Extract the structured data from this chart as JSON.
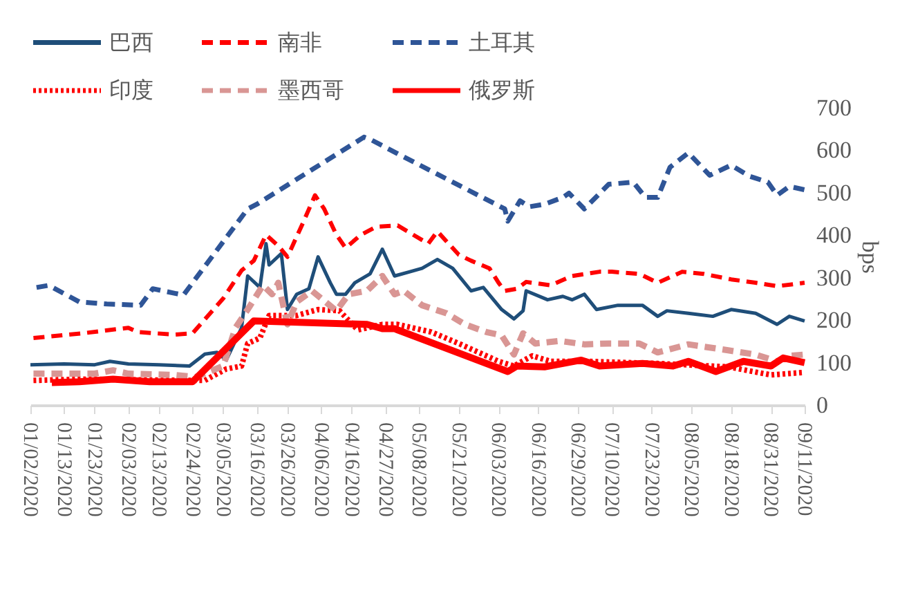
{
  "chart_data": {
    "type": "line",
    "ylabel": "bps",
    "legend": "top",
    "xlim": [
      "2020-01-02",
      "2020-09-11"
    ],
    "ylim": [
      0,
      700
    ],
    "yticks": [
      0,
      100,
      200,
      300,
      400,
      500,
      600,
      700
    ],
    "xticks": [
      {
        "value": "2020-01-02",
        "label": "01/02/2020"
      },
      {
        "value": "2020-01-13",
        "label": "01/13/2020"
      },
      {
        "value": "2020-01-23",
        "label": "01/23/2020"
      },
      {
        "value": "2020-02-03",
        "label": "02/03/2020"
      },
      {
        "value": "2020-02-13",
        "label": "02/13/2020"
      },
      {
        "value": "2020-02-24",
        "label": "02/24/2020"
      },
      {
        "value": "2020-03-05",
        "label": "03/05/2020"
      },
      {
        "value": "2020-03-16",
        "label": "03/16/2020"
      },
      {
        "value": "2020-03-26",
        "label": "03/26/2020"
      },
      {
        "value": "2020-04-06",
        "label": "04/06/2020"
      },
      {
        "value": "2020-04-16",
        "label": "04/16/2020"
      },
      {
        "value": "2020-04-27",
        "label": "04/27/2020"
      },
      {
        "value": "2020-05-08",
        "label": "05/08/2020"
      },
      {
        "value": "2020-05-21",
        "label": "05/21/2020"
      },
      {
        "value": "2020-06-03",
        "label": "06/03/2020"
      },
      {
        "value": "2020-06-16",
        "label": "06/16/2020"
      },
      {
        "value": "2020-06-29",
        "label": "06/29/2020"
      },
      {
        "value": "2020-07-10",
        "label": "07/10/2020"
      },
      {
        "value": "2020-07-23",
        "label": "07/23/2020"
      },
      {
        "value": "2020-08-05",
        "label": "08/05/2020"
      },
      {
        "value": "2020-08-18",
        "label": "08/18/2020"
      },
      {
        "value": "2020-08-31",
        "label": "08/31/2020"
      },
      {
        "value": "2020-09-11",
        "label": "09/11/2020"
      }
    ],
    "series": [
      {
        "name": "巴西",
        "color": "#1f4e79",
        "line_style": "solid",
        "x": [
          "2020-01-02",
          "2020-01-13",
          "2020-01-23",
          "2020-01-28",
          "2020-02-03",
          "2020-02-13",
          "2020-02-23",
          "2020-02-28",
          "2020-03-03",
          "2020-03-06",
          "2020-03-11",
          "2020-03-13",
          "2020-03-17",
          "2020-03-19",
          "2020-03-20",
          "2020-03-24",
          "2020-03-26",
          "2020-03-29",
          "2020-04-02",
          "2020-04-05",
          "2020-04-09",
          "2020-04-11",
          "2020-04-14",
          "2020-04-17",
          "2020-04-22",
          "2020-04-26",
          "2020-04-30",
          "2020-05-05",
          "2020-05-09",
          "2020-05-14",
          "2020-05-19",
          "2020-05-25",
          "2020-05-29",
          "2020-06-04",
          "2020-06-08",
          "2020-06-11",
          "2020-06-12",
          "2020-06-19",
          "2020-06-24",
          "2020-06-27",
          "2020-07-01",
          "2020-07-05",
          "2020-07-12",
          "2020-07-20",
          "2020-07-25",
          "2020-07-28",
          "2020-08-04",
          "2020-08-12",
          "2020-08-18",
          "2020-08-26",
          "2020-09-02",
          "2020-09-06",
          "2020-09-11"
        ],
        "values": [
          95,
          97,
          95,
          103,
          97,
          95,
          92,
          120,
          124,
          106,
          182,
          304,
          277,
          380,
          330,
          357,
          225,
          261,
          274,
          349,
          288,
          261,
          261,
          288,
          309,
          367,
          304,
          314,
          322,
          343,
          322,
          269,
          277,
          225,
          203,
          222,
          269,
          248,
          256,
          248,
          261,
          225,
          235,
          235,
          209,
          222,
          216,
          209,
          225,
          216,
          190,
          209,
          198
        ]
      },
      {
        "name": "南非",
        "color": "#ff0000",
        "line_style": "dashed",
        "x": [
          "2020-01-03",
          "2020-01-19",
          "2020-02-03",
          "2020-02-06",
          "2020-02-18",
          "2020-02-24",
          "2020-03-05",
          "2020-03-11",
          "2020-03-15",
          "2020-03-19",
          "2020-03-23",
          "2020-03-26",
          "2020-03-31",
          "2020-04-04",
          "2020-04-07",
          "2020-04-11",
          "2020-04-14",
          "2020-04-19",
          "2020-04-24",
          "2020-05-01",
          "2020-05-11",
          "2020-05-14",
          "2020-05-21",
          "2020-05-25",
          "2020-05-31",
          "2020-06-03",
          "2020-06-05",
          "2020-06-09",
          "2020-06-12",
          "2020-06-20",
          "2020-06-27",
          "2020-07-06",
          "2020-07-10",
          "2020-07-19",
          "2020-07-25",
          "2020-08-02",
          "2020-08-09",
          "2020-08-18",
          "2020-08-26",
          "2020-09-02",
          "2020-09-11"
        ],
        "values": [
          158,
          169,
          182,
          172,
          166,
          169,
          251,
          317,
          340,
          401,
          375,
          349,
          428,
          494,
          462,
          401,
          370,
          401,
          420,
          423,
          380,
          409,
          354,
          340,
          322,
          288,
          269,
          274,
          290,
          282,
          304,
          314,
          314,
          309,
          288,
          314,
          309,
          296,
          288,
          280,
          288
        ]
      },
      {
        "name": "土耳其",
        "color": "#2f5597",
        "line_style": "dashed",
        "x": [
          "2020-01-04",
          "2020-01-08",
          "2020-01-18",
          "2020-01-27",
          "2020-02-07",
          "2020-02-11",
          "2020-02-21",
          "2020-03-13",
          "2020-03-16",
          "2020-04-20",
          "2020-04-22",
          "2020-05-01",
          "2020-06-05",
          "2020-06-06",
          "2020-06-10",
          "2020-06-13",
          "2020-06-18",
          "2020-06-24",
          "2020-06-26",
          "2020-07-01",
          "2020-07-09",
          "2020-07-17",
          "2020-07-21",
          "2020-07-25",
          "2020-07-29",
          "2020-08-04",
          "2020-08-11",
          "2020-08-18",
          "2020-08-24",
          "2020-08-30",
          "2020-09-02",
          "2020-09-06",
          "2020-09-11"
        ],
        "values": [
          277,
          282,
          243,
          238,
          235,
          274,
          259,
          462,
          473,
          631,
          626,
          592,
          462,
          433,
          481,
          467,
          473,
          489,
          499,
          462,
          520,
          525,
          489,
          489,
          560,
          594,
          541,
          565,
          539,
          525,
          494,
          515,
          507
        ]
      },
      {
        "name": "印度",
        "color": "#ff0000",
        "line_style": "dotted",
        "x": [
          "2020-01-03",
          "2020-01-18",
          "2020-02-23",
          "2020-02-28",
          "2020-03-01",
          "2020-03-06",
          "2020-03-11",
          "2020-03-13",
          "2020-03-17",
          "2020-03-20",
          "2020-03-29",
          "2020-04-05",
          "2020-04-12",
          "2020-04-18",
          "2020-04-26",
          "2020-05-01",
          "2020-05-12",
          "2020-05-21",
          "2020-06-03",
          "2020-06-08",
          "2020-06-14",
          "2020-06-20",
          "2020-07-02",
          "2020-07-25",
          "2020-08-17",
          "2020-08-31",
          "2020-09-11"
        ],
        "values": [
          58,
          61,
          58,
          58,
          66,
          85,
          92,
          145,
          158,
          211,
          211,
          225,
          222,
          177,
          190,
          190,
          172,
          145,
          103,
          92,
          116,
          103,
          103,
          98,
          90,
          71,
          77
        ]
      },
      {
        "name": "墨西哥",
        "color": "#d99694",
        "line_style": "dashed",
        "x": [
          "2020-01-03",
          "2020-01-23",
          "2020-01-29",
          "2020-02-03",
          "2020-02-18",
          "2020-02-25",
          "2020-03-05",
          "2020-03-09",
          "2020-03-13",
          "2020-03-18",
          "2020-03-21",
          "2020-03-23",
          "2020-03-26",
          "2020-03-29",
          "2020-04-03",
          "2020-04-11",
          "2020-04-15",
          "2020-04-21",
          "2020-04-26",
          "2020-04-30",
          "2020-05-03",
          "2020-05-09",
          "2020-05-17",
          "2020-05-23",
          "2020-05-30",
          "2020-06-04",
          "2020-06-08",
          "2020-06-11",
          "2020-06-15",
          "2020-06-23",
          "2020-07-01",
          "2020-07-09",
          "2020-07-19",
          "2020-07-25",
          "2020-08-04",
          "2020-08-17",
          "2020-08-26",
          "2020-09-02",
          "2020-09-06",
          "2020-09-11"
        ],
        "values": [
          74,
          74,
          82,
          74,
          71,
          66,
          92,
          182,
          225,
          282,
          261,
          288,
          190,
          243,
          269,
          222,
          261,
          269,
          304,
          261,
          269,
          235,
          216,
          190,
          172,
          164,
          119,
          169,
          145,
          151,
          143,
          145,
          145,
          124,
          143,
          129,
          119,
          103,
          116,
          119
        ]
      },
      {
        "name": "俄罗斯",
        "color": "#ff0000",
        "line_style": "solid",
        "x": [
          "2020-01-09",
          "2020-01-18",
          "2020-01-29",
          "2020-02-10",
          "2020-02-24",
          "2020-03-15",
          "2020-04-21",
          "2020-04-26",
          "2020-04-30",
          "2020-05-01",
          "2020-06-06",
          "2020-06-09",
          "2020-06-18",
          "2020-06-30",
          "2020-07-06",
          "2020-07-20",
          "2020-07-30",
          "2020-08-04",
          "2020-08-13",
          "2020-08-22",
          "2020-08-31",
          "2020-09-04",
          "2020-09-11"
        ],
        "values": [
          53,
          55,
          61,
          55,
          55,
          198,
          190,
          180,
          180,
          177,
          79,
          92,
          90,
          106,
          92,
          98,
          92,
          103,
          79,
          103,
          92,
          111,
          100
        ]
      }
    ]
  }
}
